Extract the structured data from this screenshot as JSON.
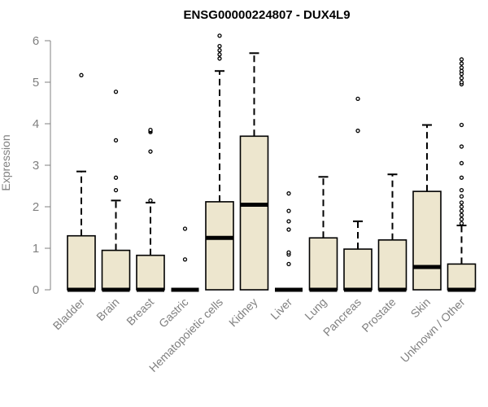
{
  "chart_data": {
    "type": "boxplot",
    "title": "ENSG00000224807 - DUX4L9",
    "xlabel": "",
    "ylabel": "Expression",
    "ylim": [
      0,
      6.2
    ],
    "yticks": [
      0,
      1,
      2,
      3,
      4,
      5,
      6
    ],
    "box_fill": "#EDE6CE",
    "categories": [
      "Bladder",
      "Brain",
      "Breast",
      "Gastric",
      "Hematopoietic cells",
      "Kidney",
      "Liver",
      "Lung",
      "Pancreas",
      "Prostate",
      "Skin",
      "Unknown / Other"
    ],
    "boxes": [
      {
        "category": "Bladder",
        "whisker_low": 0,
        "q1": 0,
        "median": 0,
        "q3": 1.3,
        "whisker_high": 2.85,
        "outliers": [
          5.17
        ]
      },
      {
        "category": "Brain",
        "whisker_low": 0,
        "q1": 0,
        "median": 0,
        "q3": 0.95,
        "whisker_high": 2.15,
        "outliers": [
          2.4,
          2.7,
          3.6,
          4.77
        ]
      },
      {
        "category": "Breast",
        "whisker_low": 0,
        "q1": 0,
        "median": 0,
        "q3": 0.83,
        "whisker_high": 2.1,
        "outliers": [
          2.15,
          3.33,
          3.8,
          3.83,
          3.85
        ]
      },
      {
        "category": "Gastric",
        "whisker_low": 0,
        "q1": 0,
        "median": 0,
        "q3": 0,
        "whisker_high": 0,
        "outliers": [
          0.73,
          1.47
        ]
      },
      {
        "category": "Hematopoietic cells",
        "whisker_low": 0,
        "q1": 0,
        "median": 1.25,
        "q3": 2.12,
        "whisker_high": 5.27,
        "outliers": [
          5.57,
          5.67,
          5.77,
          5.87,
          6.12
        ]
      },
      {
        "category": "Kidney",
        "whisker_low": 0,
        "q1": 0,
        "median": 2.05,
        "q3": 3.7,
        "whisker_high": 5.7,
        "outliers": []
      },
      {
        "category": "Liver",
        "whisker_low": 0,
        "q1": 0,
        "median": 0,
        "q3": 0,
        "whisker_high": 0,
        "outliers": [
          0.62,
          0.85,
          0.9,
          1.45,
          1.65,
          1.9,
          2.32
        ]
      },
      {
        "category": "Lung",
        "whisker_low": 0,
        "q1": 0,
        "median": 0,
        "q3": 1.25,
        "whisker_high": 2.72,
        "outliers": []
      },
      {
        "category": "Pancreas",
        "whisker_low": 0,
        "q1": 0,
        "median": 0,
        "q3": 0.98,
        "whisker_high": 1.65,
        "outliers": [
          3.83,
          4.6
        ]
      },
      {
        "category": "Prostate",
        "whisker_low": 0,
        "q1": 0,
        "median": 0,
        "q3": 1.2,
        "whisker_high": 2.78,
        "outliers": []
      },
      {
        "category": "Skin",
        "whisker_low": 0,
        "q1": 0,
        "median": 0.55,
        "q3": 2.37,
        "whisker_high": 3.97,
        "outliers": []
      },
      {
        "category": "Unknown / Other",
        "whisker_low": 0,
        "q1": 0,
        "median": 0,
        "q3": 0.62,
        "whisker_high": 1.55,
        "outliers": [
          1.6,
          1.7,
          1.8,
          1.9,
          2.0,
          2.1,
          2.25,
          2.4,
          2.7,
          3.05,
          3.45,
          3.97,
          4.95,
          5.0,
          5.1,
          5.2,
          5.27,
          5.35,
          5.45,
          5.55
        ]
      }
    ]
  }
}
